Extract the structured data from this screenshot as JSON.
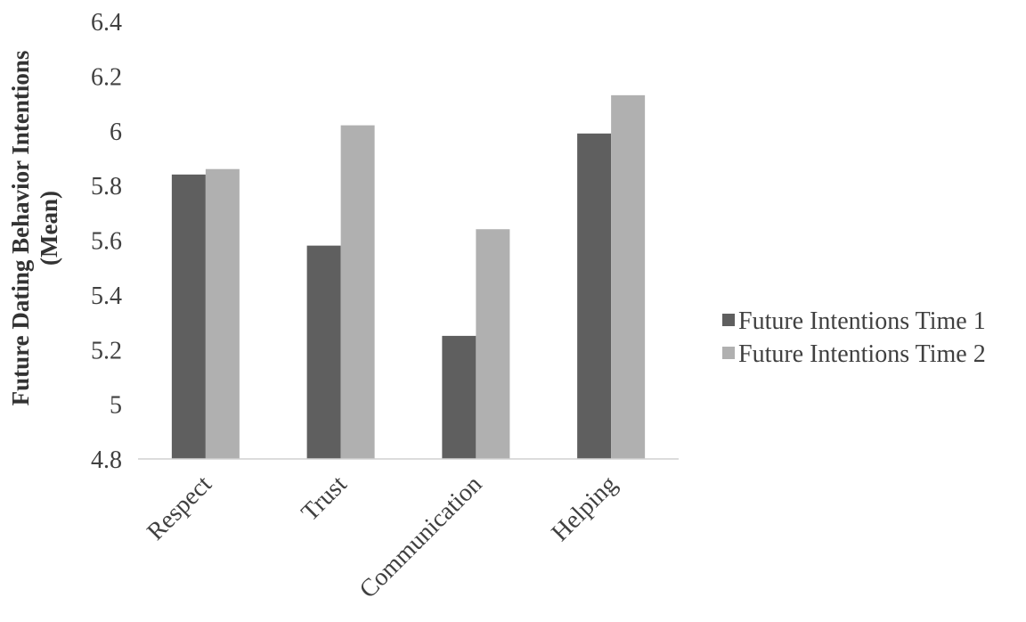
{
  "chart_data": {
    "type": "bar",
    "title": "",
    "xlabel": "",
    "ylabel_line1": "Future Dating Behavior Intentions",
    "ylabel_line2": "(Mean)",
    "categories": [
      "Respect",
      "Trust",
      "Communication",
      "Helping"
    ],
    "series": [
      {
        "name": "Future Intentions Time 1",
        "color": "#5f5f5f",
        "values": [
          5.84,
          5.58,
          5.25,
          5.99
        ]
      },
      {
        "name": "Future Intentions Time 2",
        "color": "#b0b0b0",
        "values": [
          5.86,
          6.02,
          5.64,
          6.13
        ]
      }
    ],
    "ylim": [
      4.8,
      6.4
    ],
    "yticks": [
      "4.8",
      "5",
      "5.2",
      "5.4",
      "5.6",
      "5.8",
      "6",
      "6.2",
      "6.4"
    ],
    "grid": false,
    "legend_position": "right"
  }
}
